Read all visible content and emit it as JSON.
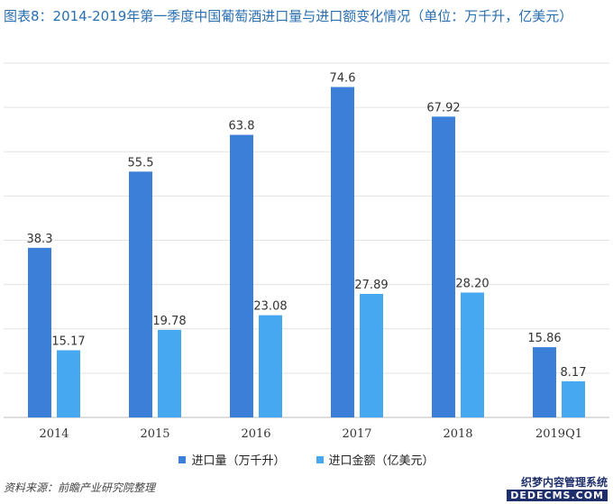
{
  "title": "图表8：2014-2019年第一季度中国葡萄酒进口量与进口额变化情况（单位：万千升，亿美元）",
  "source": "资料来源：前瞻产业研究院整理",
  "watermark": {
    "line1": "织梦内容管理系统",
    "line2": "DEDECMS.COM"
  },
  "colors": {
    "import_volume": "#3b7fd9",
    "import_value": "#45a8f0",
    "title": "#2a6fb0"
  },
  "chart_data": {
    "type": "bar",
    "title": "图表8：2014-2019年第一季度中国葡萄酒进口量与进口额变化情况（单位：万千升，亿美元）",
    "categories": [
      "2014",
      "2015",
      "2016",
      "2017",
      "2018",
      "2019Q1"
    ],
    "series": [
      {
        "name": "进口量（万千升）",
        "values": [
          38.3,
          55.5,
          63.8,
          74.6,
          67.92,
          15.86
        ],
        "labels": [
          "38.3",
          "55.5",
          "63.8",
          "74.6",
          "67.92",
          "15.86"
        ]
      },
      {
        "name": "进口金额（亿美元）",
        "values": [
          15.17,
          19.78,
          23.08,
          27.89,
          28.2,
          8.17
        ],
        "labels": [
          "15.17",
          "19.78",
          "23.08",
          "27.89",
          "28.20",
          "8.17"
        ]
      }
    ],
    "ylim": [
      0,
      80
    ],
    "grid": true,
    "legend": "bottom-center"
  }
}
